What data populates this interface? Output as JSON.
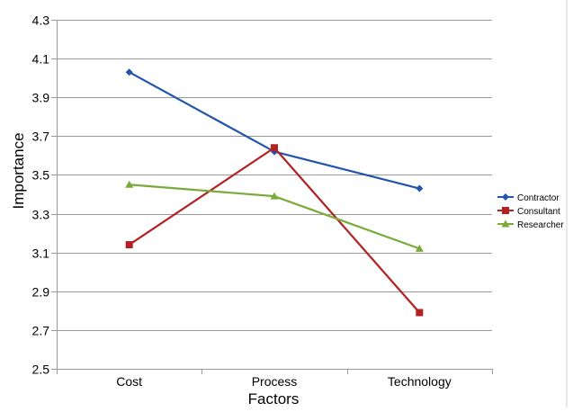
{
  "chart_data": {
    "type": "line",
    "title": "",
    "xlabel": "Factors",
    "ylabel": "Importance",
    "categories": [
      "Cost",
      "Process",
      "Technology"
    ],
    "ylim": [
      2.5,
      4.3
    ],
    "yticks": [
      "2.5",
      "2.7",
      "2.9",
      "3.1",
      "3.3",
      "3.5",
      "3.7",
      "3.9",
      "4.1",
      "4.3"
    ],
    "grid": "horizontal",
    "legend_position": "right",
    "series": [
      {
        "name": "Contractor",
        "values": [
          4.03,
          3.62,
          3.43
        ],
        "color": "#2255aa",
        "marker": "diamond"
      },
      {
        "name": "Consultant",
        "values": [
          3.14,
          3.64,
          2.79
        ],
        "color": "#b22222",
        "marker": "square"
      },
      {
        "name": "Researcher",
        "values": [
          3.45,
          3.39,
          3.12
        ],
        "color": "#7aab3a",
        "marker": "triangle"
      }
    ]
  }
}
